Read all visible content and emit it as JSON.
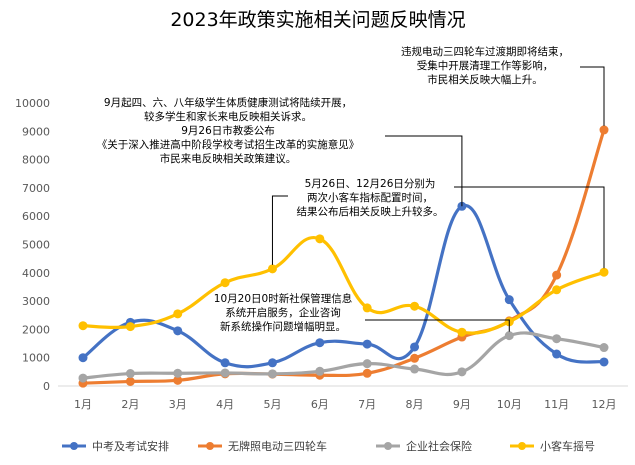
{
  "chart_data": {
    "type": "line",
    "title": "2023年政策实施相关问题反映情况",
    "categories": [
      "1月",
      "2月",
      "3月",
      "4月",
      "5月",
      "6月",
      "7月",
      "8月",
      "9月",
      "10月",
      "11月",
      "12月"
    ],
    "ylim": [
      0,
      10000
    ],
    "yticks": [
      0,
      1000,
      2000,
      3000,
      4000,
      5000,
      6000,
      7000,
      8000,
      9000,
      10000
    ],
    "grid": false,
    "legend": "bottom",
    "smooth": true,
    "series": [
      {
        "name": "中考及考试安排",
        "color": "#4472C4",
        "values": [
          1000,
          2250,
          1950,
          820,
          820,
          1530,
          1480,
          1380,
          6350,
          3050,
          1130,
          850
        ]
      },
      {
        "name": "无牌照电动三四轮车",
        "color": "#ED7D31",
        "values": [
          100,
          160,
          200,
          430,
          420,
          380,
          450,
          980,
          1730,
          2300,
          3920,
          9050
        ]
      },
      {
        "name": "企业社会保险",
        "color": "#A5A5A5",
        "values": [
          280,
          440,
          450,
          460,
          430,
          520,
          790,
          600,
          500,
          1780,
          1670,
          1360
        ]
      },
      {
        "name": "小客车摇号",
        "color": "#FFC000",
        "values": [
          2130,
          2100,
          2550,
          3650,
          4140,
          5200,
          2760,
          2820,
          1900,
          2270,
          3400,
          4020
        ]
      }
    ],
    "annotations": [
      {
        "id": "education",
        "lines": [
          "9月起四、六、八年级学生体质健康测试将陆续开展，",
          "较多学生和家长来电反映相关诉求。",
          "9月26日市教委公布",
          "《关于深入推进高中阶段学校考试招生改革的实施意见》",
          "市民来电反映相关政策建议。"
        ],
        "points": [
          {
            "series": 0,
            "category": "9月"
          }
        ]
      },
      {
        "id": "car-lottery",
        "lines": [
          "5月26日、12月26日分别为",
          "两次小客车指标配置时间，",
          "结果公布后相关反映上升较多。"
        ],
        "points": [
          {
            "series": 3,
            "category": "5月"
          },
          {
            "series": 3,
            "category": "12月"
          }
        ]
      },
      {
        "id": "social-insurance",
        "lines": [
          "10月20日0时新社保管理信息",
          "系统开启服务，企业咨询",
          "新系统操作问题增幅明显。"
        ],
        "points": [
          {
            "series": 2,
            "category": "10月"
          }
        ]
      },
      {
        "id": "tricycle",
        "lines": [
          "违规电动三四轮车过渡期即将结束，",
          "受集中开展清理工作等影响，",
          "市民相关反映大幅上升。"
        ],
        "points": [
          {
            "series": 1,
            "category": "12月"
          }
        ]
      }
    ]
  }
}
